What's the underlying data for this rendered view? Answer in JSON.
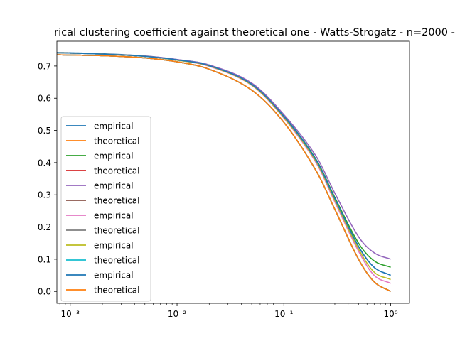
{
  "chart_data": {
    "type": "line",
    "title": "rical clustering coefficient against theoretical one - Watts-Strogatz - n=2000 -",
    "xlabel": "",
    "ylabel": "",
    "x_scale": "log",
    "xlim": [
      0.00075,
      1.5
    ],
    "ylim": [
      -0.037,
      0.777
    ],
    "x_ticks": [
      0.001,
      0.01,
      0.1,
      1
    ],
    "x_tick_labels": [
      "10⁻³",
      "10⁻²",
      "10⁻¹",
      "10⁰"
    ],
    "y_ticks": [
      0.0,
      0.1,
      0.2,
      0.3,
      0.4,
      0.5,
      0.6,
      0.7
    ],
    "y_tick_labels": [
      "0.0",
      "0.1",
      "0.2",
      "0.3",
      "0.4",
      "0.5",
      "0.6",
      "0.7"
    ],
    "grid": false,
    "legend_position": "lower-left",
    "x": [
      0.0007,
      0.001,
      0.002,
      0.005,
      0.01,
      0.02,
      0.05,
      0.1,
      0.2,
      0.3,
      0.5,
      0.7,
      1.0
    ],
    "series": [
      {
        "name": "empirical",
        "color": "#1f77b4",
        "values": [
          0.742,
          0.741,
          0.738,
          0.731,
          0.72,
          0.703,
          0.645,
          0.545,
          0.41,
          0.29,
          0.14,
          0.075,
          0.05
        ]
      },
      {
        "name": "theoretical",
        "color": "#ff7f0e",
        "values": [
          0.735,
          0.734,
          0.732,
          0.725,
          0.713,
          0.69,
          0.625,
          0.525,
          0.375,
          0.255,
          0.1,
          0.03,
          0.0
        ]
      },
      {
        "name": "empirical",
        "color": "#2ca02c",
        "values": [
          0.741,
          0.74,
          0.737,
          0.73,
          0.719,
          0.701,
          0.643,
          0.543,
          0.41,
          0.292,
          0.15,
          0.095,
          0.075
        ]
      },
      {
        "name": "theoretical",
        "color": "#d62728",
        "values": [
          0.735,
          0.734,
          0.732,
          0.725,
          0.713,
          0.69,
          0.625,
          0.525,
          0.375,
          0.255,
          0.1,
          0.03,
          0.0
        ]
      },
      {
        "name": "empirical",
        "color": "#9467bd",
        "values": [
          0.741,
          0.74,
          0.737,
          0.731,
          0.72,
          0.703,
          0.647,
          0.549,
          0.42,
          0.305,
          0.17,
          0.12,
          0.1
        ]
      },
      {
        "name": "theoretical",
        "color": "#8c564b",
        "values": [
          0.735,
          0.734,
          0.732,
          0.725,
          0.713,
          0.69,
          0.625,
          0.525,
          0.375,
          0.255,
          0.1,
          0.03,
          0.0
        ]
      },
      {
        "name": "empirical",
        "color": "#e377c2",
        "values": [
          0.741,
          0.74,
          0.737,
          0.73,
          0.718,
          0.699,
          0.64,
          0.538,
          0.4,
          0.278,
          0.125,
          0.05,
          0.025
        ]
      },
      {
        "name": "theoretical",
        "color": "#7f7f7f",
        "values": [
          0.735,
          0.734,
          0.732,
          0.725,
          0.713,
          0.69,
          0.625,
          0.525,
          0.375,
          0.255,
          0.1,
          0.03,
          0.0
        ]
      },
      {
        "name": "empirical",
        "color": "#bcbd22",
        "values": [
          0.741,
          0.74,
          0.737,
          0.73,
          0.718,
          0.7,
          0.641,
          0.54,
          0.404,
          0.283,
          0.132,
          0.06,
          0.037
        ]
      },
      {
        "name": "theoretical",
        "color": "#17becf",
        "values": [
          0.735,
          0.734,
          0.732,
          0.725,
          0.713,
          0.69,
          0.625,
          0.525,
          0.375,
          0.255,
          0.1,
          0.03,
          0.0
        ]
      },
      {
        "name": "empirical",
        "color": "#1f77b4",
        "values": [
          0.741,
          0.74,
          0.737,
          0.73,
          0.719,
          0.701,
          0.643,
          0.543,
          0.408,
          0.288,
          0.14,
          0.075,
          0.05
        ]
      },
      {
        "name": "theoretical",
        "color": "#ff7f0e",
        "values": [
          0.735,
          0.734,
          0.732,
          0.725,
          0.713,
          0.69,
          0.625,
          0.525,
          0.375,
          0.255,
          0.1,
          0.03,
          0.0
        ]
      }
    ]
  }
}
